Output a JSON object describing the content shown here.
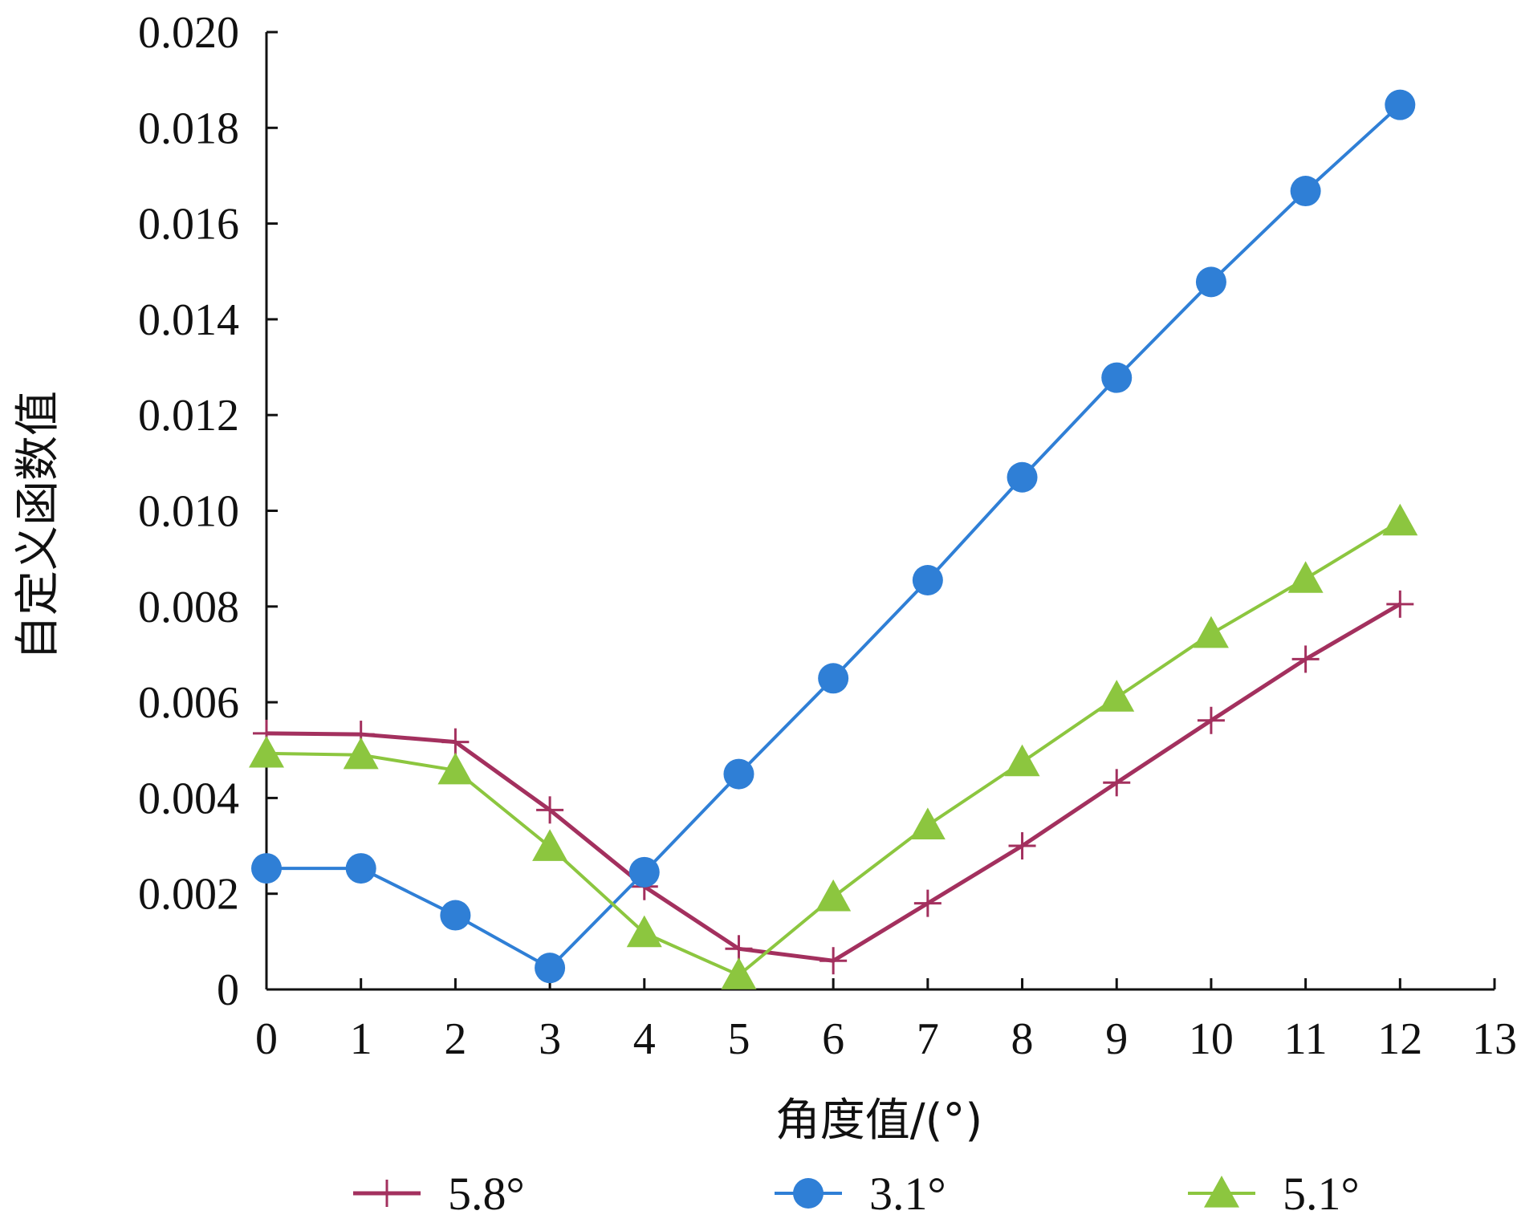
{
  "chart_data": {
    "type": "line",
    "title": "",
    "xlabel": "角度值/(°)",
    "ylabel": "自定义函数值",
    "xlim": [
      0,
      13
    ],
    "ylim": [
      0,
      0.02
    ],
    "grid": false,
    "legend_position": "bottom",
    "x_ticks": [
      "0",
      "1",
      "2",
      "3",
      "4",
      "5",
      "6",
      "7",
      "8",
      "9",
      "10",
      "11",
      "12",
      "13"
    ],
    "y_ticks": [
      "0",
      "0.002",
      "0.004",
      "0.006",
      "0.008",
      "0.010",
      "0.012",
      "0.014",
      "0.016",
      "0.018",
      "0.020"
    ],
    "x": [
      0,
      1,
      2,
      3,
      4,
      5,
      6,
      7,
      8,
      9,
      10,
      11,
      12
    ],
    "series": [
      {
        "name": "5.8°",
        "marker": "plus",
        "color": "#a3305e",
        "values": [
          0.00535,
          0.00533,
          0.00517,
          0.00375,
          0.00215,
          0.00085,
          0.0006,
          0.0018,
          0.003,
          0.00432,
          0.00562,
          0.0069,
          0.00805
        ]
      },
      {
        "name": "3.1°",
        "marker": "circle",
        "color": "#2f7fd6",
        "values": [
          0.00253,
          0.00253,
          0.00155,
          0.00045,
          0.00245,
          0.0045,
          0.0065,
          0.00855,
          0.0107,
          0.01278,
          0.01478,
          0.01668,
          0.01848
        ]
      },
      {
        "name": "5.1°",
        "marker": "triangle",
        "color": "#8cc63f",
        "values": [
          0.00493,
          0.0049,
          0.00458,
          0.00298,
          0.00118,
          0.0003,
          0.00193,
          0.00343,
          0.00475,
          0.0061,
          0.00743,
          0.00858,
          0.00978
        ]
      }
    ]
  }
}
